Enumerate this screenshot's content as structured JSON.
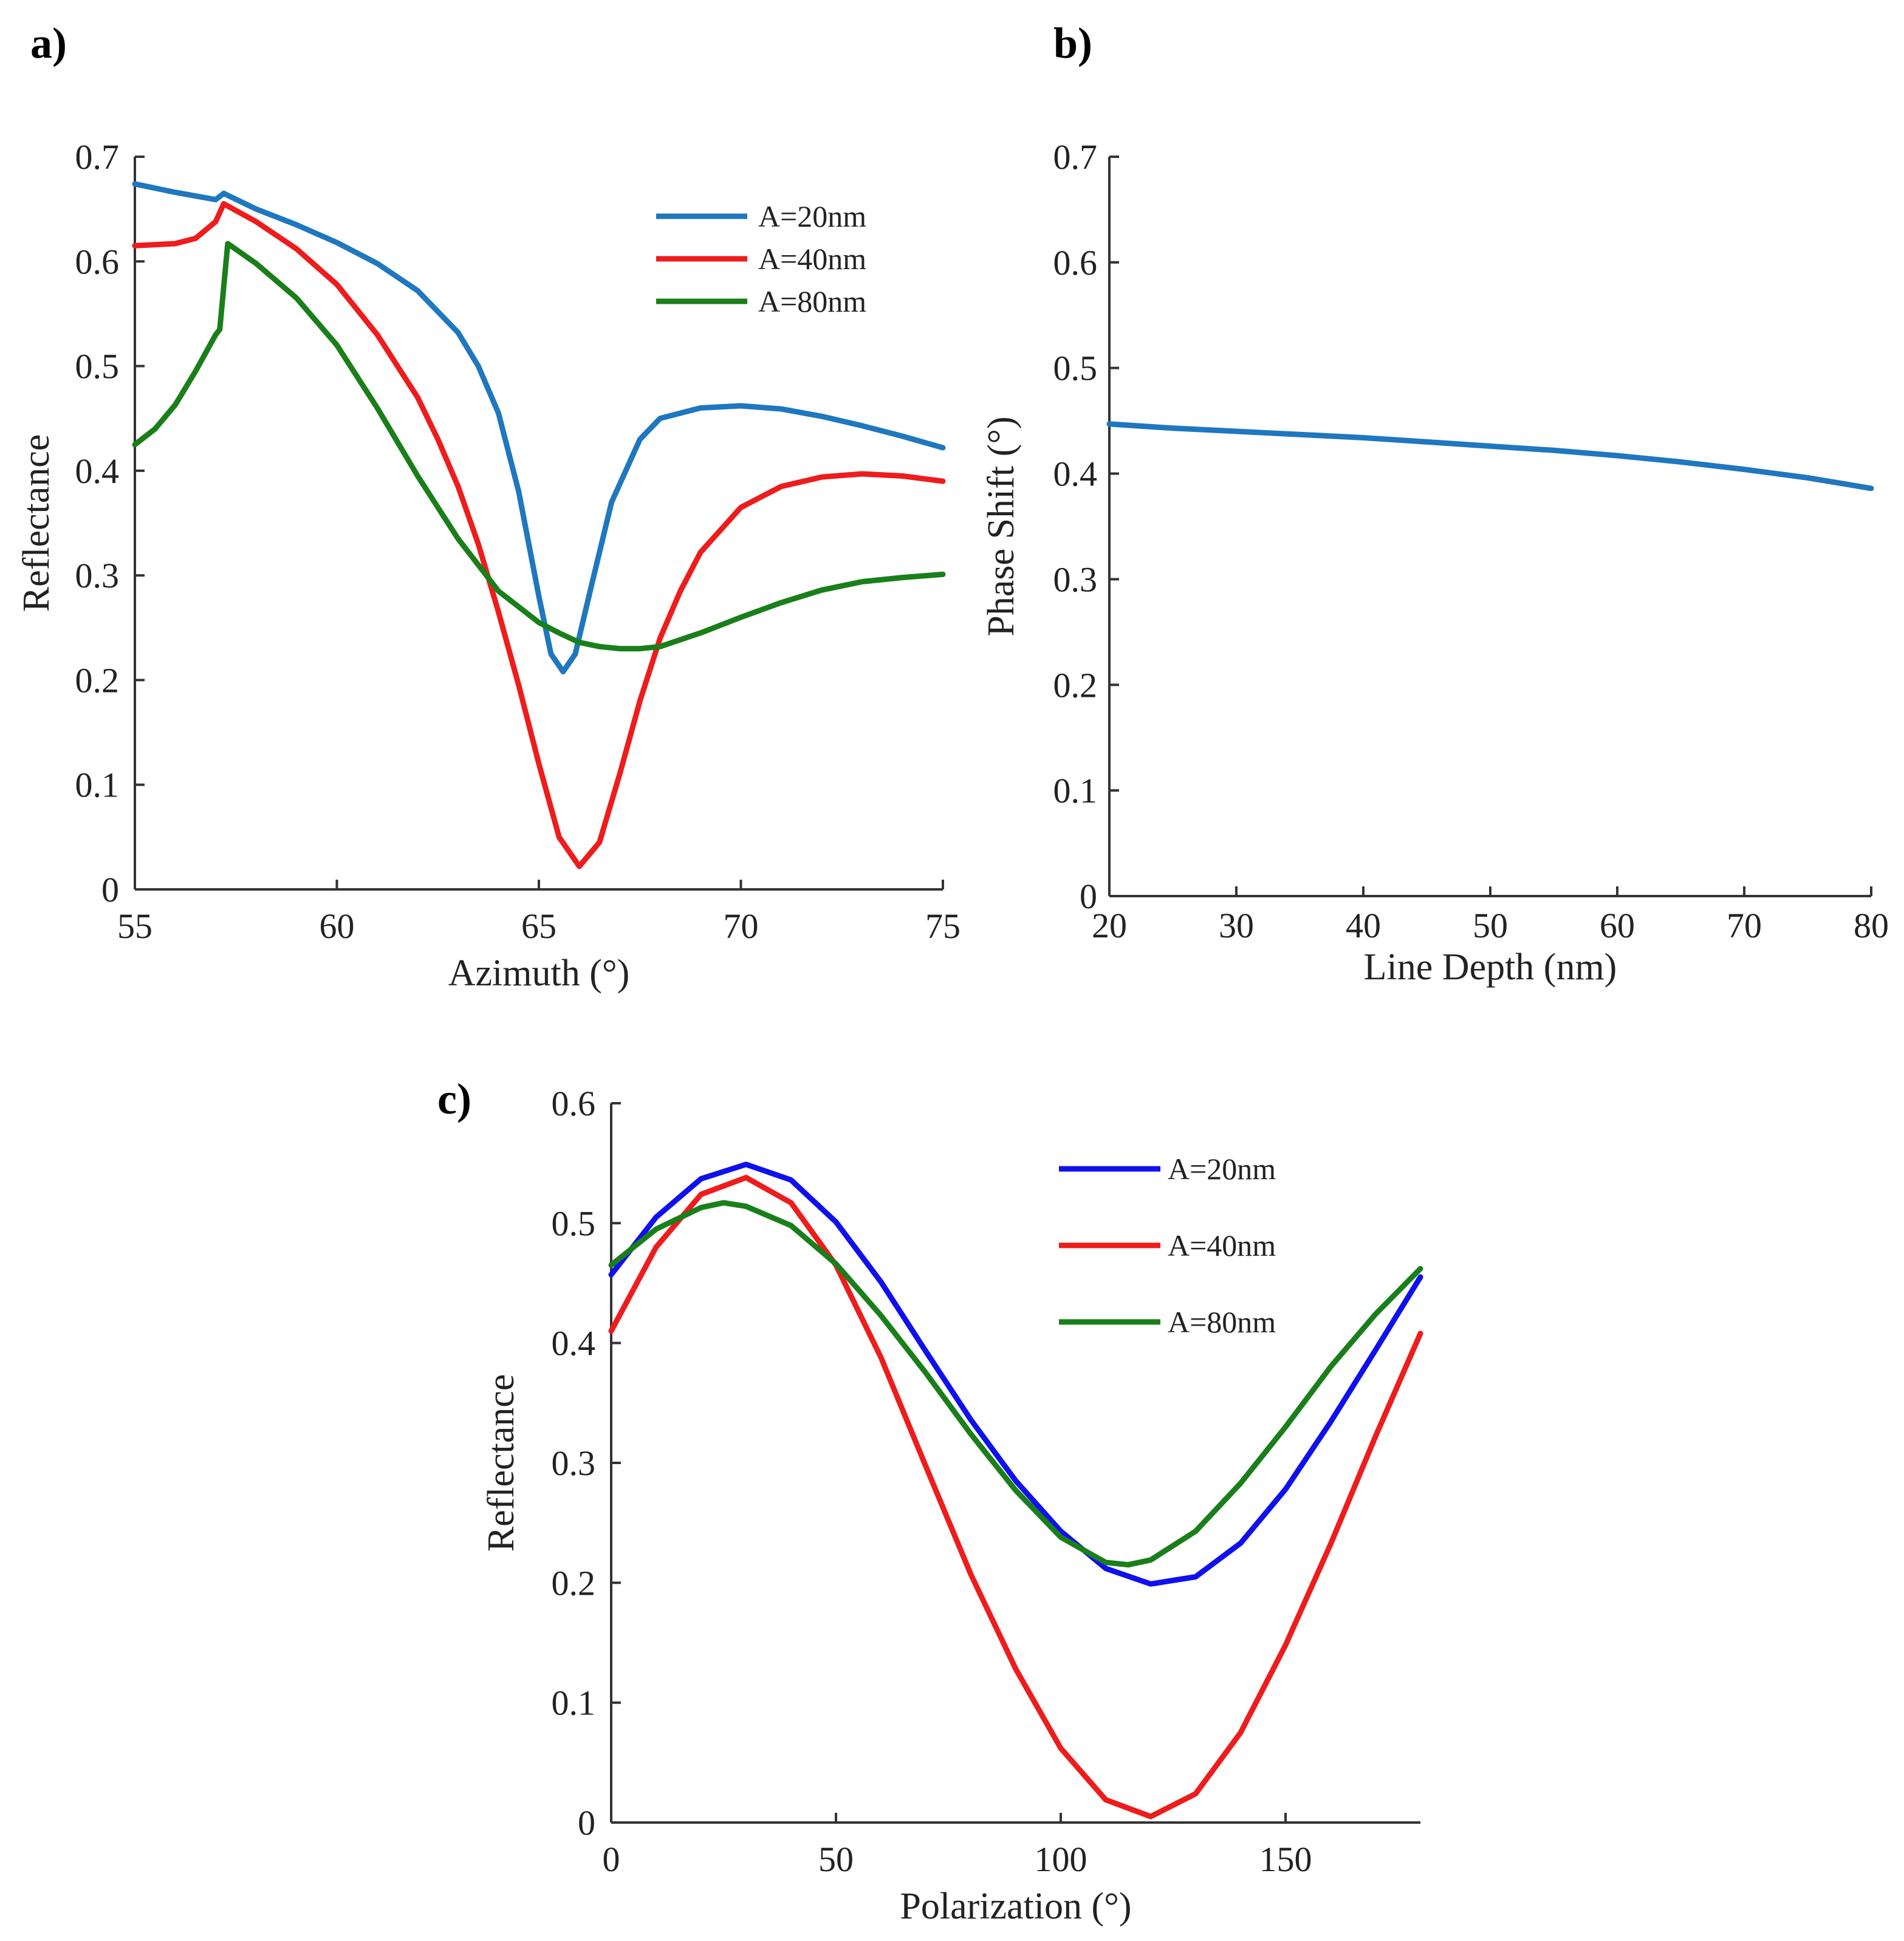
{
  "chart_data": [
    {
      "panel_label": "a)",
      "type": "line",
      "xlabel": "Azimuth (°)",
      "ylabel": "Reflectance",
      "xlim": [
        55,
        75
      ],
      "ylim": [
        0,
        0.7
      ],
      "xticks": [
        55,
        60,
        65,
        70,
        75
      ],
      "yticks": [
        0,
        0.1,
        0.2,
        0.3,
        0.4,
        0.5,
        0.6,
        0.7
      ],
      "legend_position": "top-right",
      "grid": false,
      "series": [
        {
          "name": "A=20nm",
          "color": "#1f77bf",
          "x": [
            55,
            56,
            57,
            57.2,
            58,
            59,
            60,
            61,
            62,
            63,
            63.5,
            64,
            64.5,
            65,
            65.3,
            65.6,
            65.9,
            66.3,
            66.8,
            67.5,
            68,
            69,
            70,
            71,
            72,
            73,
            74,
            75
          ],
          "y": [
            0.674,
            0.666,
            0.659,
            0.665,
            0.65,
            0.635,
            0.618,
            0.598,
            0.572,
            0.532,
            0.5,
            0.455,
            0.38,
            0.28,
            0.225,
            0.208,
            0.225,
            0.29,
            0.37,
            0.43,
            0.45,
            0.46,
            0.462,
            0.459,
            0.452,
            0.443,
            0.433,
            0.422
          ]
        },
        {
          "name": "A=40nm",
          "color": "#ee1c1c",
          "x": [
            55,
            56,
            56.5,
            57,
            57.2,
            58,
            59,
            60,
            61,
            62,
            62.5,
            63,
            63.5,
            64,
            64.5,
            65,
            65.5,
            66,
            66.5,
            67,
            67.5,
            68,
            68.5,
            69,
            70,
            71,
            72,
            73,
            74,
            75
          ],
          "y": [
            0.615,
            0.617,
            0.622,
            0.638,
            0.655,
            0.638,
            0.612,
            0.578,
            0.53,
            0.47,
            0.43,
            0.385,
            0.33,
            0.265,
            0.195,
            0.12,
            0.05,
            0.022,
            0.045,
            0.11,
            0.18,
            0.24,
            0.285,
            0.322,
            0.365,
            0.385,
            0.394,
            0.397,
            0.395,
            0.39
          ]
        },
        {
          "name": "A=80nm",
          "color": "#1a7f1a",
          "x": [
            55,
            55.5,
            56,
            56.5,
            57,
            57.1,
            57.3,
            58,
            59,
            60,
            61,
            62,
            63,
            64,
            65,
            65.5,
            66,
            66.5,
            67,
            67.5,
            68,
            69,
            70,
            71,
            72,
            73,
            74,
            75
          ],
          "y": [
            0.425,
            0.44,
            0.463,
            0.495,
            0.53,
            0.535,
            0.617,
            0.598,
            0.565,
            0.52,
            0.46,
            0.395,
            0.335,
            0.285,
            0.255,
            0.245,
            0.236,
            0.232,
            0.23,
            0.23,
            0.232,
            0.245,
            0.26,
            0.274,
            0.286,
            0.294,
            0.298,
            0.301
          ]
        }
      ]
    },
    {
      "panel_label": "b)",
      "type": "line",
      "xlabel": "Line Depth (nm)",
      "ylabel": "Phase Shift (°)",
      "xlim": [
        20,
        80
      ],
      "ylim": [
        0,
        0.7
      ],
      "xticks": [
        20,
        30,
        40,
        50,
        60,
        70,
        80
      ],
      "yticks": [
        0,
        0.1,
        0.2,
        0.3,
        0.4,
        0.5,
        0.6,
        0.7
      ],
      "grid": false,
      "series": [
        {
          "color": "#1f77bf",
          "x": [
            20,
            25,
            30,
            35,
            40,
            45,
            50,
            55,
            60,
            65,
            70,
            75,
            80
          ],
          "y": [
            0.447,
            0.443,
            0.44,
            0.437,
            0.434,
            0.43,
            0.426,
            0.422,
            0.417,
            0.411,
            0.404,
            0.396,
            0.386
          ]
        }
      ]
    },
    {
      "panel_label": "c)",
      "type": "line",
      "xlabel": "Polarization (°)",
      "ylabel": "Reflectance",
      "xlim": [
        0,
        180
      ],
      "ylim": [
        0,
        0.6
      ],
      "xticks": [
        0,
        50,
        100,
        150
      ],
      "yticks": [
        0,
        0.1,
        0.2,
        0.3,
        0.4,
        0.5,
        0.6
      ],
      "legend_position": "top-right",
      "grid": false,
      "series": [
        {
          "name": "A=20nm",
          "color": "#1010ee",
          "x": [
            0,
            10,
            20,
            30,
            40,
            50,
            60,
            70,
            80,
            90,
            100,
            110,
            120,
            130,
            140,
            150,
            160,
            170,
            180
          ],
          "y": [
            0.457,
            0.505,
            0.537,
            0.549,
            0.536,
            0.501,
            0.451,
            0.393,
            0.336,
            0.285,
            0.243,
            0.212,
            0.199,
            0.205,
            0.233,
            0.278,
            0.334,
            0.394,
            0.455
          ]
        },
        {
          "name": "A=40nm",
          "color": "#ee1c1c",
          "x": [
            0,
            10,
            20,
            30,
            40,
            50,
            60,
            70,
            80,
            90,
            100,
            110,
            120,
            130,
            140,
            150,
            160,
            170,
            180
          ],
          "y": [
            0.41,
            0.48,
            0.524,
            0.538,
            0.517,
            0.465,
            0.388,
            0.297,
            0.207,
            0.128,
            0.062,
            0.019,
            0.005,
            0.024,
            0.075,
            0.148,
            0.232,
            0.322,
            0.408
          ]
        },
        {
          "name": "A=80nm",
          "color": "#1a7f1a",
          "x": [
            0,
            10,
            20,
            25,
            30,
            40,
            50,
            60,
            70,
            80,
            90,
            100,
            110,
            115,
            120,
            130,
            140,
            150,
            160,
            170,
            180
          ],
          "y": [
            0.465,
            0.495,
            0.513,
            0.517,
            0.514,
            0.498,
            0.466,
            0.423,
            0.375,
            0.324,
            0.277,
            0.238,
            0.217,
            0.215,
            0.219,
            0.243,
            0.283,
            0.33,
            0.38,
            0.424,
            0.462
          ]
        }
      ]
    }
  ]
}
